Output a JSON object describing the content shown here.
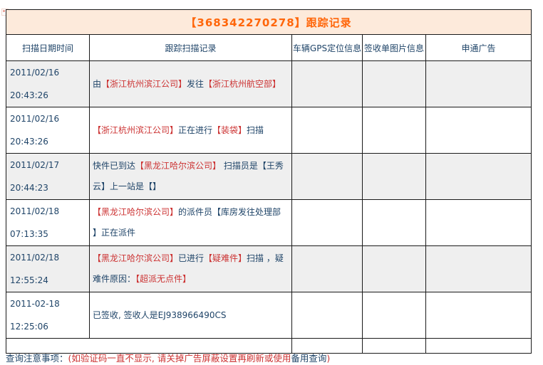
{
  "colors": {
    "navy": "#1f4468",
    "red": "#cc3333",
    "title_text": "#ff660a",
    "title_bg": "#fdeadb",
    "row_alt_bg": "#efefef",
    "border": "#1a1a1a"
  },
  "header": {
    "title": "【368342270278】跟踪记录"
  },
  "table": {
    "headers": [
      "扫描日期时间",
      "跟踪扫描记录",
      "车辆GPS定位信息",
      "签收单图片信息",
      "申通广告"
    ],
    "rows": [
      {
        "date": "2011/02/16",
        "time": "20:43:26",
        "segments": [
          {
            "text": "由",
            "color": "navy"
          },
          {
            "text": "【浙江杭州滨江公司】",
            "color": "red"
          },
          {
            "text": "发往",
            "color": "navy"
          },
          {
            "text": "【浙江杭州航空部】",
            "color": "red"
          }
        ]
      },
      {
        "date": "2011/02/16",
        "time": "20:43:26",
        "segments": [
          {
            "text": "【浙江杭州滨江公司】",
            "color": "red"
          },
          {
            "text": "正在进行",
            "color": "navy"
          },
          {
            "text": "【装袋】",
            "color": "red"
          },
          {
            "text": "扫描",
            "color": "navy"
          }
        ]
      },
      {
        "date": "2011/02/17",
        "time": "20:44:23",
        "segments": [
          {
            "text": "快件已到达",
            "color": "navy"
          },
          {
            "text": "【黑龙江哈尔滨公司】",
            "color": "red"
          },
          {
            "text": " 扫描员是【王秀云】上一站是【】",
            "color": "navy"
          }
        ]
      },
      {
        "date": "2011/02/18",
        "time": "07:13:35",
        "segments": [
          {
            "text": "【黑龙江哈尔滨公司】",
            "color": "red"
          },
          {
            "text": "的派件员【库房发往处理部 】正在派件",
            "color": "navy"
          }
        ]
      },
      {
        "date": "2011/02/18",
        "time": "12:55:24",
        "segments": [
          {
            "text": "【黑龙江哈尔滨公司】",
            "color": "red"
          },
          {
            "text": "已进行",
            "color": "navy"
          },
          {
            "text": "【疑难件】",
            "color": "red"
          },
          {
            "text": "扫描 ，疑难件原因：",
            "color": "navy"
          },
          {
            "text": "【超派无点件】",
            "color": "red"
          }
        ]
      },
      {
        "date": "2011-02-18",
        "time": "12:25:06",
        "segments": [
          {
            "text": "已签收, 签收人是EJ938966490CS",
            "color": "navy"
          }
        ]
      }
    ]
  },
  "footer": {
    "segments": [
      {
        "text": "查询注意事项：",
        "color": "navy"
      },
      {
        "text": "(如验证码一直不显示, 请关掉广告屏蔽设置再刷新或使用",
        "color": "red"
      },
      {
        "text": "备用查询",
        "color": "navy",
        "link": true
      },
      {
        "text": ")",
        "color": "red"
      }
    ]
  }
}
